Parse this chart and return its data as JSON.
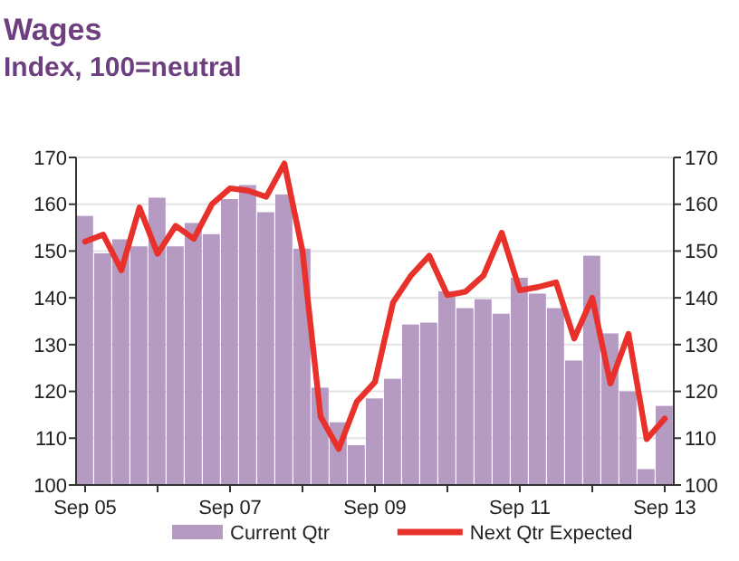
{
  "chart_data": {
    "type": "bar",
    "title": "Wages",
    "subtitle": "Index, 100=neutral",
    "categories": [
      "Sep 05",
      null,
      null,
      null,
      null,
      null,
      null,
      null,
      "Sep 07",
      null,
      null,
      null,
      null,
      null,
      null,
      null,
      "Sep 09",
      null,
      null,
      null,
      null,
      null,
      null,
      null,
      "Sep 11",
      null,
      null,
      null,
      null,
      null,
      null,
      null,
      "Sep 13"
    ],
    "series": [
      {
        "name": "Current Qtr",
        "color": "#b59ac2",
        "values": [
          157.5,
          149.5,
          152.5,
          151,
          161.4,
          151,
          156,
          153.6,
          161.1,
          164.1,
          158.3,
          162.1,
          150.5,
          120.8,
          113.4,
          108.5,
          118.5,
          122.7,
          134.3,
          134.7,
          141.4,
          137.8,
          139.7,
          136.6,
          144.3,
          140.9,
          137.8,
          126.6,
          149,
          132.4,
          120,
          103.4,
          116.9
        ]
      },
      {
        "name": "Next Qtr Expected",
        "type": "line",
        "color": "#e8312a",
        "values": [
          152,
          153.5,
          145.9,
          159.3,
          149.4,
          155.4,
          152.6,
          160,
          163.4,
          162.9,
          161.6,
          168.7,
          150,
          114.6,
          107.7,
          117.8,
          122,
          139,
          144.8,
          149,
          140.6,
          141.3,
          144.8,
          153.9,
          141.6,
          142.3,
          143.3,
          131.3,
          140,
          121.7,
          132.3,
          109.8,
          114.2
        ]
      }
    ],
    "ylim": [
      100,
      170
    ],
    "yticks": [
      100,
      110,
      120,
      130,
      140,
      150,
      160,
      170
    ],
    "y2lim": [
      100,
      170
    ],
    "y2ticks": [
      100,
      110,
      120,
      130,
      140,
      150,
      160,
      170
    ],
    "grid": "y",
    "legend": "bottom",
    "marker": "none",
    "line_style": "solid"
  }
}
